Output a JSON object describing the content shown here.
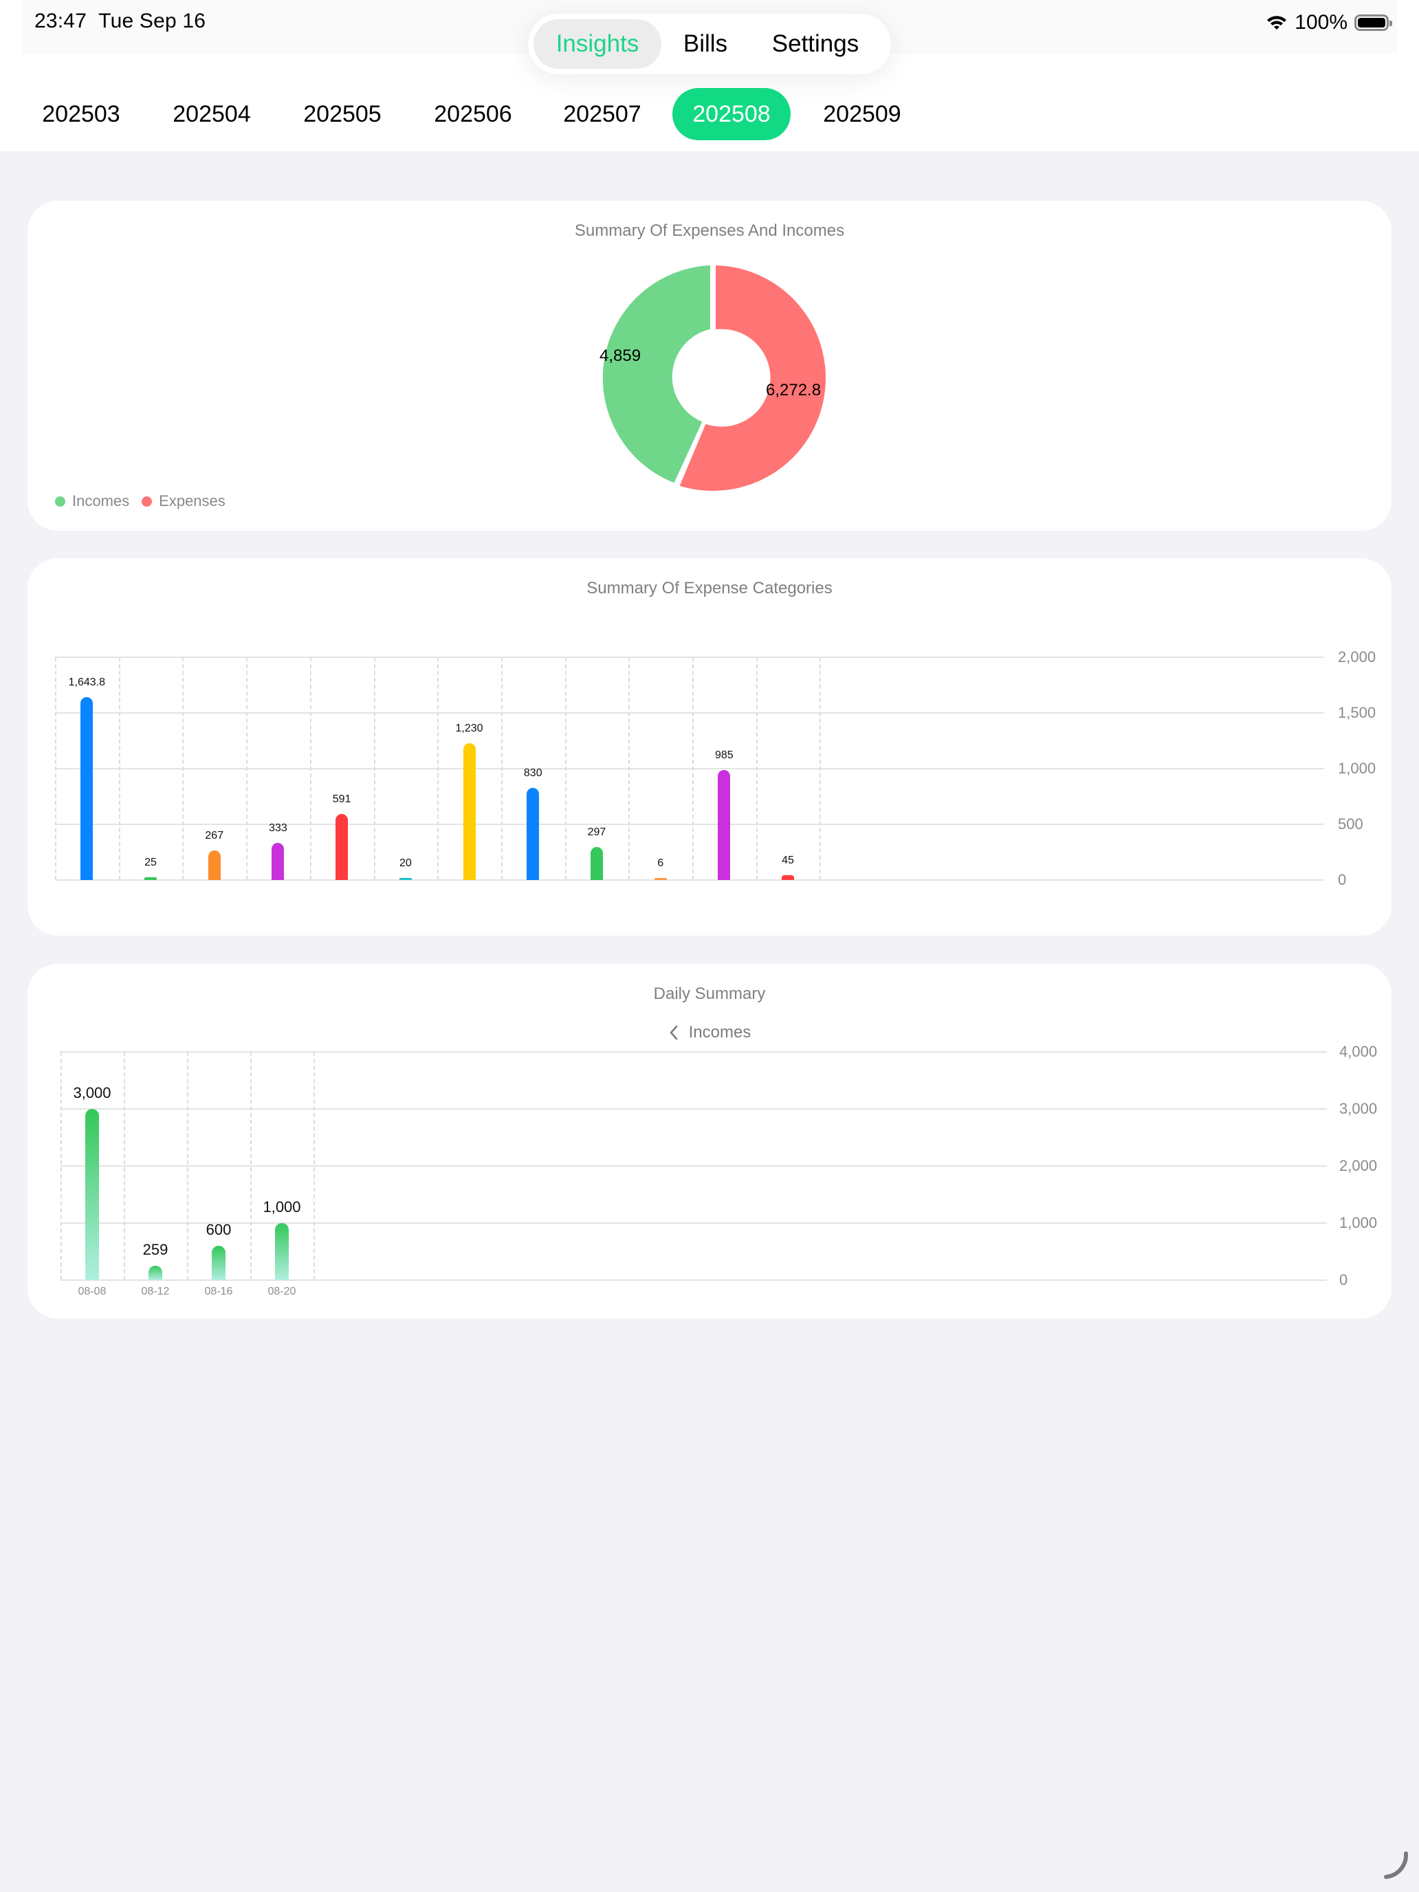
{
  "status_bar": {
    "time": "23:47",
    "date": "Tue Sep 16",
    "battery_percent": "100%",
    "wifi_icon": "wifi-icon",
    "battery_icon": "battery-full-icon"
  },
  "nav": {
    "tabs": [
      {
        "label": "Insights",
        "active": true
      },
      {
        "label": "Bills",
        "active": false
      },
      {
        "label": "Settings",
        "active": false
      }
    ],
    "accent_color": "#1ed38a"
  },
  "months": {
    "items": [
      "202503",
      "202504",
      "202505",
      "202506",
      "202507",
      "202508",
      "202509"
    ],
    "selected": "202508",
    "selected_color": "#12d983"
  },
  "summary_card": {
    "title": "Summary Of Expenses And Incomes",
    "legend": [
      {
        "label": "Incomes",
        "color": "#70d68a"
      },
      {
        "label": "Expenses",
        "color": "#ff7474"
      }
    ],
    "values": {
      "incomes": "4,859",
      "expenses": "6,272.8"
    }
  },
  "categories_card": {
    "title": "Summary Of Expense Categories",
    "y_ticks": [
      "2,000",
      "1,500",
      "1,000",
      "500",
      "0"
    ],
    "bars": [
      {
        "label": "1,643.8",
        "value": 1643.8,
        "color": "#0a84ff"
      },
      {
        "label": "25",
        "value": 25,
        "color": "#34c759"
      },
      {
        "label": "267",
        "value": 267,
        "color": "#ff8c2a"
      },
      {
        "label": "333",
        "value": 333,
        "color": "#c931dc"
      },
      {
        "label": "591",
        "value": 591,
        "color": "#ff3b3f"
      },
      {
        "label": "20",
        "value": 20,
        "color": "#1ec3cc"
      },
      {
        "label": "1,230",
        "value": 1230,
        "color": "#ffcc00"
      },
      {
        "label": "830",
        "value": 830,
        "color": "#0a84ff"
      },
      {
        "label": "297",
        "value": 297,
        "color": "#34c759"
      },
      {
        "label": "6",
        "value": 6,
        "color": "#ff9a40"
      },
      {
        "label": "985",
        "value": 985,
        "color": "#c931dc"
      },
      {
        "label": "45",
        "value": 45,
        "color": "#ff3b3f"
      }
    ]
  },
  "daily_card": {
    "title": "Daily Summary",
    "back_label": "Incomes",
    "back_icon": "chevron-left-icon",
    "y_ticks": [
      "4,00(",
      "3,00(",
      "2,00(",
      "1,00(",
      "0"
    ],
    "bars": [
      {
        "date": "08-08",
        "label": "3,000",
        "value": 3000
      },
      {
        "date": "08-12",
        "label": "259",
        "value": 259
      },
      {
        "date": "08-16",
        "label": "600",
        "value": 600
      },
      {
        "date": "08-20",
        "label": "1,000",
        "value": 1000
      }
    ]
  },
  "chart_data": [
    {
      "type": "pie",
      "title": "Summary Of Expenses And Incomes",
      "categories": [
        "Incomes",
        "Expenses"
      ],
      "values": [
        4859,
        6272.8
      ],
      "colors": [
        "#70d68a",
        "#ff7474"
      ],
      "legend_position": "bottom-left",
      "donut": true
    },
    {
      "type": "bar",
      "title": "Summary Of Expense Categories",
      "categories": [
        "1",
        "2",
        "3",
        "4",
        "5",
        "6",
        "7",
        "8",
        "9",
        "10",
        "11",
        "12"
      ],
      "values": [
        1643.8,
        25,
        267,
        333,
        591,
        20,
        1230,
        830,
        297,
        6,
        985,
        45
      ],
      "xlabel": "",
      "ylabel": "",
      "ylim": [
        0,
        2000
      ],
      "yticks": [
        0,
        500,
        1000,
        1500,
        2000
      ],
      "y_axis_position": "right",
      "grid": true
    },
    {
      "type": "bar",
      "title": "Daily Summary",
      "subtitle": "Incomes",
      "categories": [
        "08-08",
        "08-12",
        "08-16",
        "08-20"
      ],
      "values": [
        3000,
        259,
        600,
        1000
      ],
      "xlabel": "",
      "ylabel": "",
      "ylim": [
        0,
        4000
      ],
      "yticks": [
        0,
        1000,
        2000,
        3000,
        4000
      ],
      "y_axis_position": "right",
      "grid": true
    }
  ]
}
